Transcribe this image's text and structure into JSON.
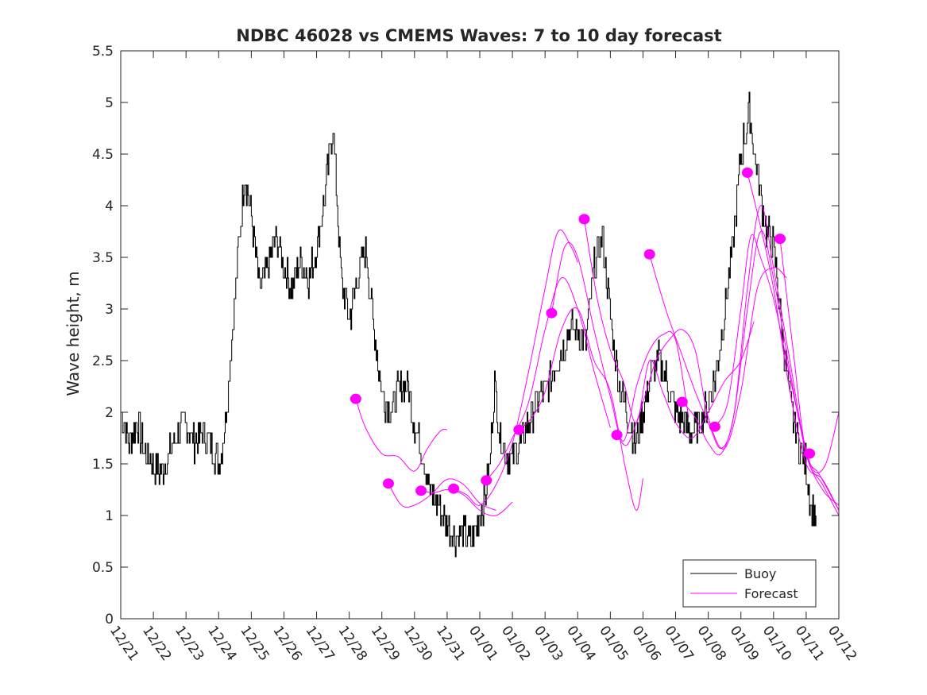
{
  "chart_data": {
    "type": "line",
    "title": "NDBC 46028 vs CMEMS Waves: 7 to 10 day forecast",
    "xlabel": "",
    "ylabel": "Wave height, m",
    "xlim": [
      0,
      22
    ],
    "ylim": [
      0,
      5.5
    ],
    "yticks": [
      0,
      0.5,
      1,
      1.5,
      2,
      2.5,
      3,
      3.5,
      4,
      4.5,
      5,
      5.5
    ],
    "ytick_labels": [
      "0",
      "0.5",
      "1",
      "1.5",
      "2",
      "2.5",
      "3",
      "3.5",
      "4",
      "4.5",
      "5",
      "5.5"
    ],
    "xtick_labels": [
      "12/21",
      "12/22",
      "12/23",
      "12/24",
      "12/25",
      "12/26",
      "12/27",
      "12/28",
      "12/29",
      "12/30",
      "12/31",
      "01/01",
      "01/02",
      "01/03",
      "01/04",
      "01/05",
      "01/06",
      "01/07",
      "01/08",
      "01/09",
      "01/10",
      "01/11",
      "01/12"
    ],
    "legend": {
      "position": "bottom-right",
      "entries": [
        {
          "label": "Buoy",
          "color": "#000000"
        },
        {
          "label": "Forecast",
          "color": "#ff00ff"
        }
      ]
    },
    "colors": {
      "buoy": "#000000",
      "forecast": "#ff00ff",
      "axes": "#262626"
    },
    "series": [
      {
        "name": "Buoy",
        "color": "#000000",
        "x": [
          0,
          0.25,
          0.5,
          0.75,
          1,
          1.25,
          1.5,
          1.75,
          2,
          2.25,
          2.5,
          2.75,
          3,
          3.2,
          3.4,
          3.6,
          3.8,
          4,
          4.25,
          4.5,
          4.75,
          5,
          5.25,
          5.5,
          5.75,
          6,
          6.25,
          6.5,
          6.75,
          7,
          7.25,
          7.5,
          7.75,
          8,
          8.25,
          8.5,
          8.75,
          9,
          9.25,
          9.5,
          9.75,
          10,
          10.25,
          10.5,
          10.75,
          11,
          11.15,
          11.3,
          11.45,
          11.6,
          11.8,
          12,
          12.25,
          12.5,
          12.75,
          13,
          13.25,
          13.5,
          13.75,
          14,
          14.25,
          14.5,
          14.75,
          15,
          15.25,
          15.5,
          15.75,
          16,
          16.25,
          16.5,
          16.75,
          17,
          17.25,
          17.5,
          17.75,
          18,
          18.25,
          18.5,
          18.75,
          19,
          19.25,
          19.5,
          19.75,
          20,
          20.25,
          20.5,
          20.75,
          21,
          21.15,
          21.3
        ],
        "y": [
          2.0,
          1.7,
          1.9,
          1.6,
          1.5,
          1.4,
          1.6,
          1.8,
          1.9,
          1.7,
          1.8,
          1.7,
          1.5,
          1.9,
          2.7,
          3.6,
          4.3,
          3.9,
          3.2,
          3.4,
          3.7,
          3.4,
          3.2,
          3.5,
          3.3,
          3.6,
          4.1,
          4.8,
          3.3,
          2.9,
          3.3,
          3.6,
          2.8,
          2.2,
          2.0,
          2.2,
          2.3,
          1.9,
          1.6,
          1.2,
          1.1,
          0.9,
          0.8,
          0.85,
          0.75,
          1.0,
          1.15,
          1.5,
          2.3,
          1.8,
          1.6,
          1.55,
          1.7,
          1.9,
          2.1,
          2.2,
          2.4,
          2.6,
          2.8,
          2.8,
          2.7,
          3.4,
          3.7,
          2.9,
          2.3,
          2.0,
          1.7,
          2.0,
          2.4,
          2.5,
          2.3,
          2.0,
          1.9,
          1.8,
          1.9,
          2.1,
          2.4,
          3.0,
          3.6,
          4.5,
          4.9,
          4.3,
          3.8,
          3.6,
          2.8,
          2.1,
          1.7,
          1.5,
          1.05,
          1.0
        ]
      },
      {
        "name": "Forecast",
        "color": "#ff00ff",
        "segments": [
          {
            "x": [
              7.2,
              7.5,
              8.0,
              8.5,
              9.0,
              9.4,
              9.8,
              10.0
            ],
            "y": [
              2.13,
              1.85,
              1.6,
              1.57,
              1.43,
              1.65,
              1.82,
              1.83
            ]
          },
          {
            "x": [
              8.2,
              8.6,
              9.0,
              9.5,
              10.0,
              10.5,
              11.0,
              11.5
            ],
            "y": [
              1.31,
              1.1,
              1.1,
              1.2,
              1.35,
              1.3,
              1.12,
              1.05
            ]
          },
          {
            "x": [
              9.2,
              9.6,
              10.0,
              10.5,
              11.0,
              11.5,
              12.0
            ],
            "y": [
              1.24,
              1.22,
              1.25,
              1.2,
              1.05,
              1.0,
              1.13
            ]
          },
          {
            "x": [
              10.2,
              10.6,
              11.0,
              11.5,
              12.0,
              12.5,
              13.0,
              13.4,
              13.8,
              14.0
            ],
            "y": [
              1.26,
              1.2,
              1.1,
              1.3,
              1.7,
              2.4,
              3.2,
              3.75,
              3.6,
              3.45
            ]
          },
          {
            "x": [
              11.2,
              11.6,
              12.0,
              12.5,
              13.0,
              13.5,
              14.0,
              14.5,
              15.0
            ],
            "y": [
              1.34,
              1.5,
              1.75,
              2.1,
              2.8,
              3.3,
              3.0,
              2.4,
              1.85
            ]
          },
          {
            "x": [
              12.2,
              12.6,
              13.0,
              13.5,
              14.0,
              14.5,
              15.0,
              15.5,
              15.8,
              16.0
            ],
            "y": [
              1.83,
              1.95,
              2.2,
              2.8,
              3.0,
              2.5,
              2.2,
              1.4,
              1.05,
              1.36
            ]
          },
          {
            "x": [
              13.2,
              13.6,
              14.0,
              14.5,
              15.0,
              15.4,
              15.8,
              16.2,
              16.6,
              17.0,
              17.4
            ],
            "y": [
              2.96,
              3.6,
              3.5,
              2.8,
              2.15,
              1.72,
              2.25,
              2.6,
              2.75,
              2.7,
              1.95
            ]
          },
          {
            "x": [
              14.2,
              14.6,
              15.0,
              15.4,
              15.8,
              16.2,
              16.6,
              17.0,
              17.5,
              18.0,
              18.5,
              19.0,
              19.4
            ],
            "y": [
              3.87,
              3.1,
              2.6,
              2.3,
              1.9,
              2.5,
              2.2,
              1.9,
              1.75,
              2.0,
              2.3,
              2.5,
              2.88
            ]
          },
          {
            "x": [
              15.2,
              15.5,
              15.8,
              16.1,
              16.4,
              16.8,
              17.2,
              17.6,
              18.0,
              18.5,
              19.0,
              19.5,
              20.0,
              20.4
            ],
            "y": [
              1.78,
              1.68,
              1.9,
              2.2,
              2.5,
              2.7,
              2.8,
              2.6,
              1.95,
              1.65,
              2.2,
              3.2,
              3.4,
              3.3
            ]
          },
          {
            "x": [
              16.2,
              16.5,
              16.8,
              17.2,
              17.6,
              18.0,
              18.4,
              18.8,
              19.2,
              19.6,
              20.0,
              20.5,
              21.0,
              21.4,
              22.0
            ],
            "y": [
              3.53,
              3.2,
              2.9,
              2.55,
              2.2,
              1.9,
              1.65,
              2.0,
              3.2,
              4.0,
              3.4,
              2.5,
              1.6,
              1.4,
              1.05
            ]
          },
          {
            "x": [
              17.2,
              17.6,
              18.0,
              18.4,
              18.8,
              19.2,
              19.6,
              20.0,
              20.5,
              21.0,
              21.5,
              22.0
            ],
            "y": [
              2.1,
              1.95,
              1.7,
              1.6,
              2.0,
              3.0,
              3.75,
              3.3,
              2.4,
              1.6,
              1.25,
              1.1
            ]
          },
          {
            "x": [
              18.2,
              18.6,
              19.0,
              19.3,
              19.6,
              20.0,
              20.4,
              20.8,
              21.2,
              21.6,
              22.0
            ],
            "y": [
              1.86,
              2.1,
              3.0,
              3.7,
              3.5,
              3.1,
              2.5,
              1.9,
              1.45,
              1.5,
              2.0
            ]
          },
          {
            "x": [
              19.2,
              19.6,
              20.0,
              20.5,
              21.0,
              21.5,
              22.0
            ],
            "y": [
              4.32,
              3.8,
              3.2,
              2.2,
              1.5,
              1.35,
              1.05
            ]
          },
          {
            "x": [
              20.2,
              20.6,
              21.0,
              21.5,
              22.0
            ],
            "y": [
              3.68,
              2.6,
              1.6,
              1.3,
              1.0
            ]
          }
        ],
        "markers": {
          "x": [
            7.2,
            8.2,
            9.2,
            10.2,
            11.2,
            12.2,
            13.2,
            14.2,
            15.2,
            16.2,
            17.2,
            18.2,
            19.2,
            20.2,
            21.1
          ],
          "y": [
            2.13,
            1.31,
            1.24,
            1.26,
            1.34,
            1.83,
            2.96,
            3.87,
            1.78,
            3.53,
            2.1,
            1.86,
            4.32,
            3.68,
            1.6
          ]
        }
      }
    ]
  }
}
